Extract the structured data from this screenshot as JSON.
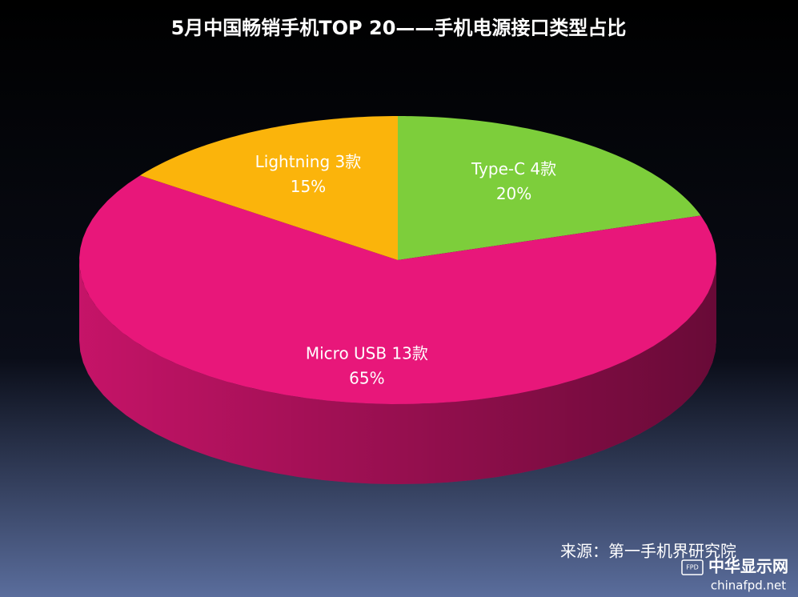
{
  "chart_data": {
    "type": "pie",
    "title": "5月中国畅销手机TOP 20——手机电源接口类型占比",
    "categories": [
      "Type-C 4款",
      "Micro USB 13款",
      "Lightning 3款"
    ],
    "values": [
      20,
      65,
      15
    ],
    "value_labels": [
      "20%",
      "65%",
      "15%"
    ],
    "colors": [
      "#7dce3b",
      "#e8177a",
      "#fbb40b"
    ],
    "source": "来源：第一手机界研究院"
  },
  "watermark": {
    "badge": "FPD",
    "name": "中华显示网",
    "url": "chinafpd.net"
  }
}
